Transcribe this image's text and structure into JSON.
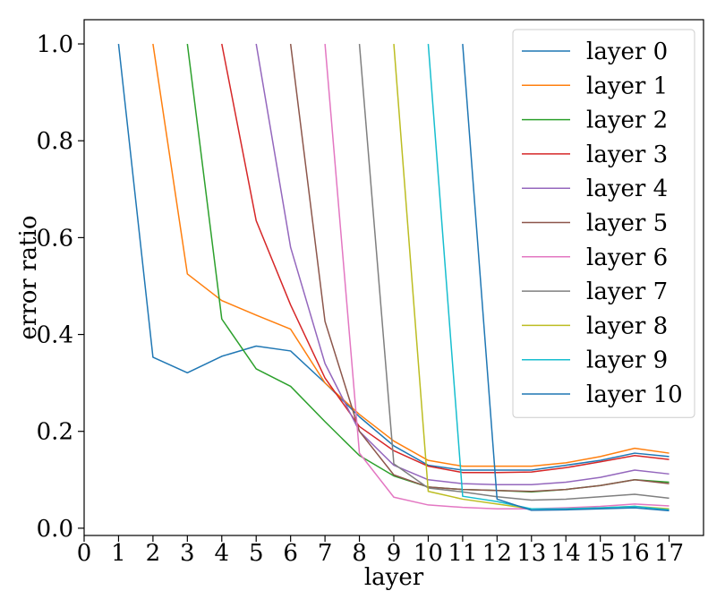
{
  "chart_data": {
    "type": "line",
    "title": "",
    "xlabel": "layer",
    "ylabel": "error ratio",
    "xlim": [
      0,
      18
    ],
    "ylim": [
      -0.015,
      1.05
    ],
    "x_ticks": [
      0,
      1,
      2,
      3,
      4,
      5,
      6,
      7,
      8,
      9,
      10,
      11,
      12,
      13,
      14,
      15,
      16,
      17
    ],
    "y_ticks": [
      0.0,
      0.2,
      0.4,
      0.6,
      0.8,
      1.0
    ],
    "y_tick_labels": [
      "0.0",
      "0.2",
      "0.4",
      "0.6",
      "0.8",
      "1.0"
    ],
    "grid": false,
    "legend": "top-right",
    "series": [
      {
        "name": "layer 0",
        "color": "#1f77b4",
        "x": [
          1,
          2,
          3,
          4,
          5,
          6,
          7,
          8,
          9,
          10,
          11,
          12,
          13,
          14,
          15,
          16,
          17
        ],
        "y": [
          1.0,
          0.353,
          0.321,
          0.355,
          0.376,
          0.366,
          0.3,
          0.23,
          0.17,
          0.13,
          0.12,
          0.12,
          0.12,
          0.13,
          0.14,
          0.155,
          0.148
        ]
      },
      {
        "name": "layer 1",
        "color": "#ff7f0e",
        "x": [
          2,
          3,
          4,
          5,
          6,
          7,
          8,
          9,
          10,
          11,
          12,
          13,
          14,
          15,
          16,
          17
        ],
        "y": [
          1.0,
          0.525,
          0.47,
          0.44,
          0.411,
          0.3,
          0.235,
          0.18,
          0.14,
          0.128,
          0.128,
          0.128,
          0.135,
          0.148,
          0.165,
          0.155
        ]
      },
      {
        "name": "layer 2",
        "color": "#2ca02c",
        "x": [
          3,
          4,
          5,
          6,
          7,
          8,
          9,
          10,
          11,
          12,
          13,
          14,
          15,
          16,
          17
        ],
        "y": [
          1.0,
          0.432,
          0.329,
          0.293,
          0.22,
          0.15,
          0.108,
          0.085,
          0.08,
          0.078,
          0.075,
          0.08,
          0.088,
          0.1,
          0.095
        ]
      },
      {
        "name": "layer 3",
        "color": "#d62728",
        "x": [
          4,
          5,
          6,
          7,
          8,
          9,
          10,
          11,
          12,
          13,
          14,
          15,
          16,
          17
        ],
        "y": [
          1.0,
          0.635,
          0.461,
          0.31,
          0.21,
          0.16,
          0.128,
          0.115,
          0.115,
          0.116,
          0.125,
          0.137,
          0.15,
          0.142
        ]
      },
      {
        "name": "layer 4",
        "color": "#9467bd",
        "x": [
          5,
          6,
          7,
          8,
          9,
          10,
          11,
          12,
          13,
          14,
          15,
          16,
          17
        ],
        "y": [
          1.0,
          0.58,
          0.34,
          0.2,
          0.13,
          0.1,
          0.092,
          0.09,
          0.09,
          0.095,
          0.105,
          0.12,
          0.112
        ]
      },
      {
        "name": "layer 5",
        "color": "#8c564b",
        "x": [
          6,
          7,
          8,
          9,
          10,
          11,
          12,
          13,
          14,
          15,
          16,
          17
        ],
        "y": [
          1.0,
          0.427,
          0.2,
          0.11,
          0.085,
          0.08,
          0.078,
          0.076,
          0.08,
          0.088,
          0.1,
          0.092
        ]
      },
      {
        "name": "layer 6",
        "color": "#e377c2",
        "x": [
          7,
          8,
          9,
          10,
          11,
          12,
          13,
          14,
          15,
          16,
          17
        ],
        "y": [
          1.0,
          0.155,
          0.064,
          0.048,
          0.043,
          0.04,
          0.04,
          0.042,
          0.045,
          0.05,
          0.046
        ]
      },
      {
        "name": "layer 7",
        "color": "#7f7f7f",
        "x": [
          8,
          9,
          10,
          11,
          12,
          13,
          14,
          15,
          16,
          17
        ],
        "y": [
          1.0,
          0.133,
          0.083,
          0.075,
          0.065,
          0.058,
          0.06,
          0.065,
          0.07,
          0.062
        ]
      },
      {
        "name": "layer 8",
        "color": "#bcbd22",
        "x": [
          9,
          10,
          11,
          12,
          13,
          14,
          15,
          16,
          17
        ],
        "y": [
          1.0,
          0.076,
          0.06,
          0.05,
          0.04,
          0.04,
          0.042,
          0.045,
          0.04
        ]
      },
      {
        "name": "layer 9",
        "color": "#17becf",
        "x": [
          10,
          11,
          12,
          13,
          14,
          15,
          16,
          17
        ],
        "y": [
          1.0,
          0.066,
          0.055,
          0.04,
          0.04,
          0.042,
          0.045,
          0.038
        ]
      },
      {
        "name": "layer 10",
        "color": "#1f77b4",
        "x": [
          11,
          12,
          13,
          14,
          15,
          16,
          17
        ],
        "y": [
          1.0,
          0.06,
          0.037,
          0.038,
          0.04,
          0.042,
          0.036
        ]
      }
    ]
  }
}
